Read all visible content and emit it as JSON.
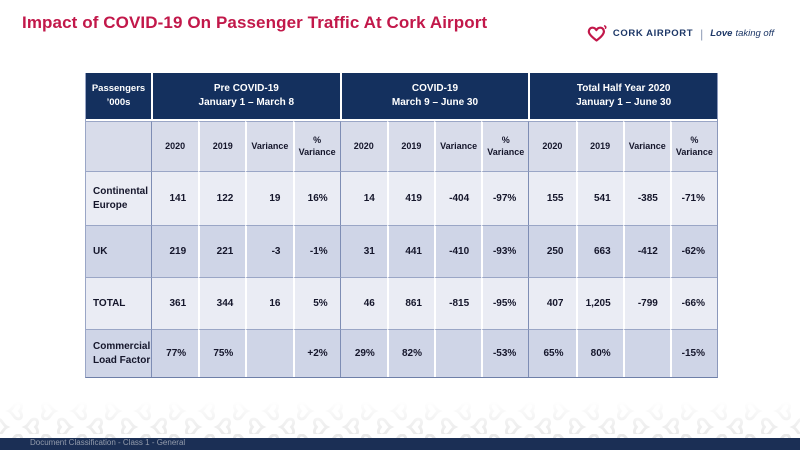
{
  "title": "Impact of COVID-19 On Passenger Traffic At Cork Airport",
  "logo": {
    "brand": "CORK AIRPORT",
    "divider": "|",
    "tagline_bold": "Love",
    "tagline_rest": "taking off",
    "heart_color": "#C2184A",
    "navy": "#1D3767"
  },
  "colors": {
    "header_navy": "#14305E",
    "row_light": "#EAECF4",
    "row_dark": "#CFD5E7",
    "subheader": "#D8DCEA",
    "accent_red": "#C2184A",
    "bottom_bar": "#1B2F55"
  },
  "table": {
    "corner": [
      "Passengers",
      "’000s"
    ],
    "sections": [
      {
        "title": "Pre COVID-19",
        "subtitle": "January 1 – March 8"
      },
      {
        "title": "COVID-19",
        "subtitle": "March 9 – June 30"
      },
      {
        "title": "Total Half Year 2020",
        "subtitle": "January 1 – June 30"
      }
    ],
    "sub_columns": [
      "2020",
      "2019",
      "Variance",
      "% Variance"
    ],
    "rows": [
      {
        "label": "Continental Europe",
        "cells": [
          "141",
          "122",
          "19",
          "16%",
          "14",
          "419",
          "-404",
          "-97%",
          "155",
          "541",
          "-385",
          "-71%"
        ]
      },
      {
        "label": "UK",
        "cells": [
          "219",
          "221",
          "-3",
          "-1%",
          "31",
          "441",
          "-410",
          "-93%",
          "250",
          "663",
          "-412",
          "-62%"
        ]
      },
      {
        "label": "TOTAL",
        "cells": [
          "361",
          "344",
          "16",
          "5%",
          "46",
          "861",
          "-815",
          "-95%",
          "407",
          "1,205",
          "-799",
          "-66%"
        ]
      },
      {
        "label": "Commercial Load Factor",
        "cells": [
          "77%",
          "75%",
          "",
          "+2%",
          "29%",
          "82%",
          "",
          "-53%",
          "65%",
          "80%",
          "",
          "-15%"
        ]
      }
    ]
  },
  "footer": {
    "classification": "Document Classification - Class 1 - General"
  }
}
